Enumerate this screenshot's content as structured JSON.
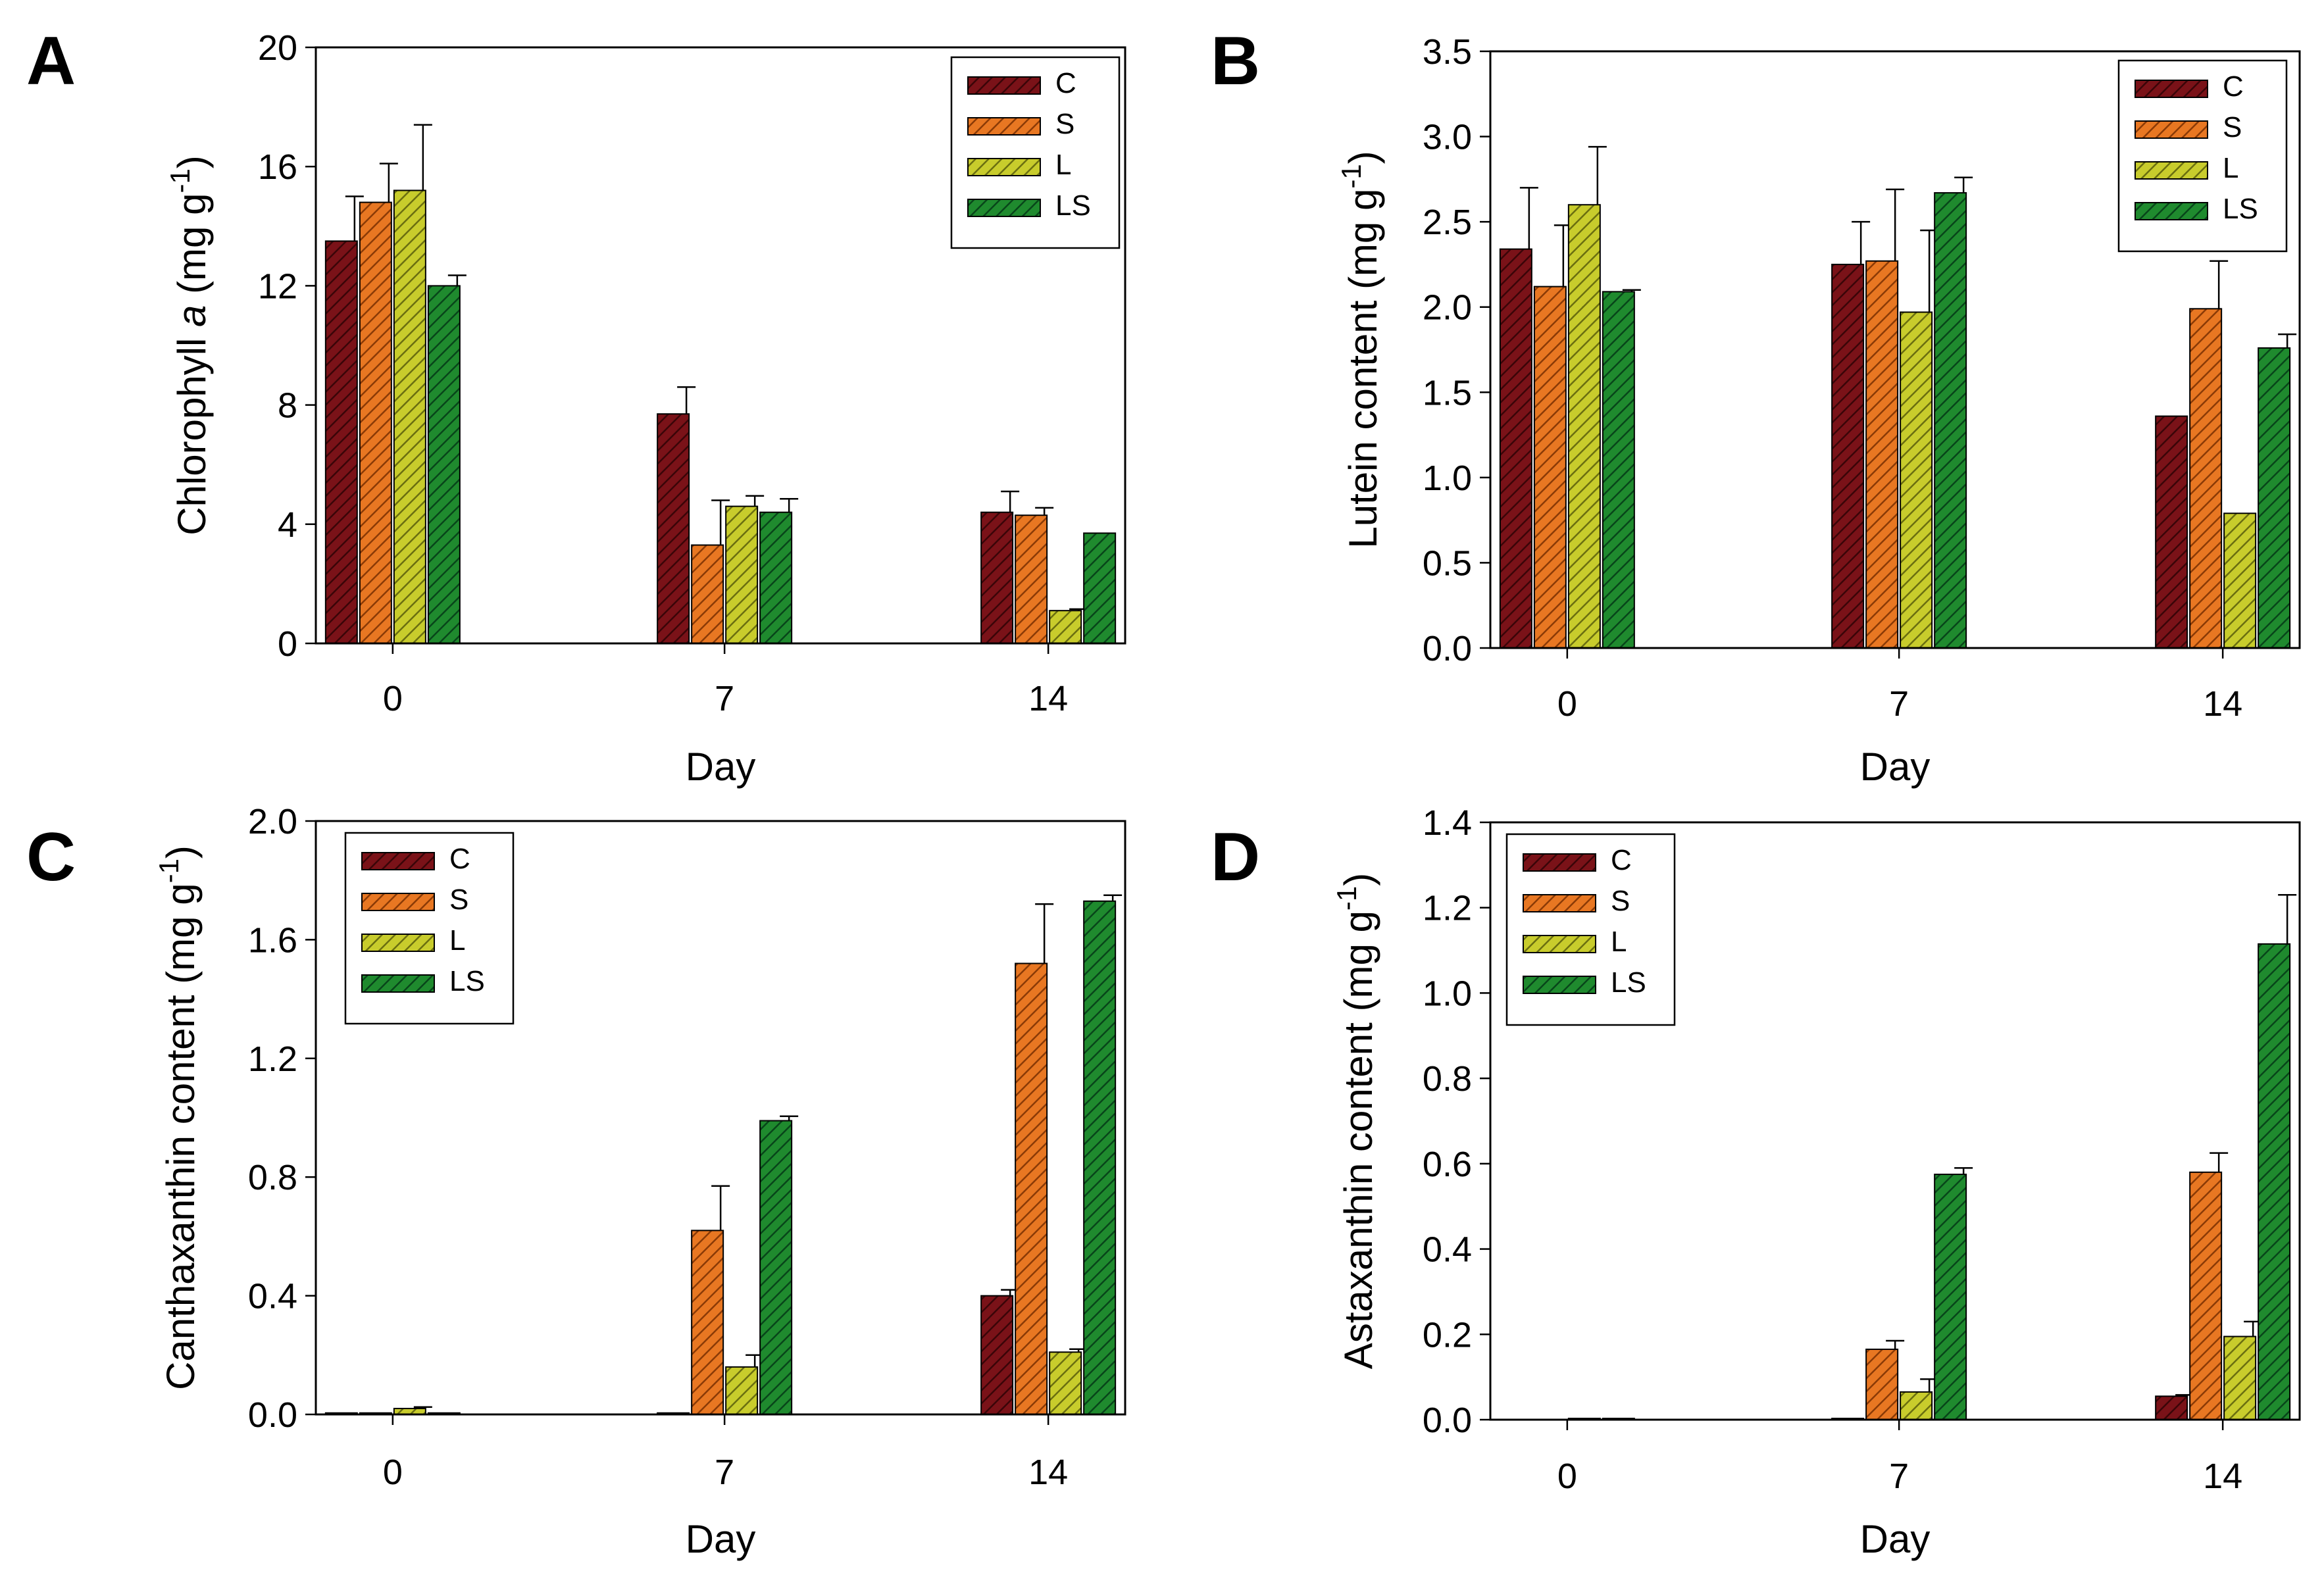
{
  "figure": {
    "colors": {
      "C": "#7a1218",
      "S": "#e87722",
      "L": "#c8cc2c",
      "LS": "#1f8a2e",
      "C_hatch": "#3a0508",
      "S_hatch": "#8a3a06",
      "L_hatch": "#6a6e10",
      "LS_hatch": "#08451a"
    }
  },
  "chart_data": [
    {
      "panel": "A",
      "type": "bar",
      "xlabel": "Day",
      "ylabel_main": "Chlorophyll ",
      "ylabel_italic": "a",
      "ylabel_unit": " (mg g",
      "ylabel_sup": "-1",
      "ylabel_close": ")",
      "categories": [
        "0",
        "7",
        "14"
      ],
      "ylim": [
        0,
        20
      ],
      "yticks": [
        "0",
        "4",
        "8",
        "12",
        "16",
        "20"
      ],
      "legend_position": "top-right",
      "series": [
        {
          "name": "C",
          "values": [
            13.5,
            7.7,
            4.4
          ],
          "errors": [
            1.5,
            0.9,
            0.7
          ]
        },
        {
          "name": "S",
          "values": [
            14.8,
            3.3,
            4.3
          ],
          "errors": [
            1.3,
            1.5,
            0.25
          ]
        },
        {
          "name": "L",
          "values": [
            15.2,
            4.6,
            1.1
          ],
          "errors": [
            2.2,
            0.35,
            0.05
          ]
        },
        {
          "name": "LS",
          "values": [
            12.0,
            4.4,
            3.7
          ],
          "errors": [
            0.35,
            0.45,
            0.0
          ]
        }
      ]
    },
    {
      "panel": "B",
      "type": "bar",
      "xlabel": "Day",
      "ylabel_main": "Lutein content",
      "ylabel_italic": "",
      "ylabel_unit": " (mg g",
      "ylabel_sup": "-1",
      "ylabel_close": ")",
      "categories": [
        "0",
        "7",
        "14"
      ],
      "ylim": [
        0,
        3.5
      ],
      "yticks": [
        "0.0",
        "0.5",
        "1.0",
        "1.5",
        "2.0",
        "2.5",
        "3.0",
        "3.5"
      ],
      "legend_position": "top-right",
      "series": [
        {
          "name": "C",
          "values": [
            2.34,
            2.25,
            1.36
          ],
          "errors": [
            0.36,
            0.25,
            0.0
          ]
        },
        {
          "name": "S",
          "values": [
            2.12,
            2.27,
            1.99
          ],
          "errors": [
            0.36,
            0.42,
            0.28
          ]
        },
        {
          "name": "L",
          "values": [
            2.6,
            1.97,
            0.79
          ],
          "errors": [
            0.34,
            0.48,
            0.0
          ]
        },
        {
          "name": "LS",
          "values": [
            2.09,
            2.67,
            1.76
          ],
          "errors": [
            0.01,
            0.09,
            0.08
          ]
        }
      ]
    },
    {
      "panel": "C",
      "type": "bar",
      "xlabel": "Day",
      "ylabel_main": "Canthaxanthin content",
      "ylabel_italic": "",
      "ylabel_unit": " (mg g",
      "ylabel_sup": "-1",
      "ylabel_close": ")",
      "categories": [
        "0",
        "7",
        "14"
      ],
      "ylim": [
        0,
        2.0
      ],
      "yticks": [
        "0.0",
        "0.4",
        "0.8",
        "1.2",
        "1.6",
        "2.0"
      ],
      "legend_position": "top-left",
      "series": [
        {
          "name": "C",
          "values": [
            0.005,
            0.005,
            0.4
          ],
          "errors": [
            0.0,
            0.0,
            0.02
          ]
        },
        {
          "name": "S",
          "values": [
            0.005,
            0.62,
            1.52
          ],
          "errors": [
            0.0,
            0.15,
            0.2
          ]
        },
        {
          "name": "L",
          "values": [
            0.02,
            0.16,
            0.21
          ],
          "errors": [
            0.005,
            0.04,
            0.01
          ]
        },
        {
          "name": "LS",
          "values": [
            0.005,
            0.99,
            1.73
          ],
          "errors": [
            0.0,
            0.015,
            0.02
          ]
        }
      ]
    },
    {
      "panel": "D",
      "type": "bar",
      "xlabel": "Day",
      "ylabel_main": "Astaxanthin content",
      "ylabel_italic": "",
      "ylabel_unit": " (mg g",
      "ylabel_sup": "-1",
      "ylabel_close": ")",
      "categories": [
        "0",
        "7",
        "14"
      ],
      "ylim": [
        0,
        1.4
      ],
      "yticks": [
        "0.0",
        "0.2",
        "0.4",
        "0.6",
        "0.8",
        "1.0",
        "1.2",
        "1.4"
      ],
      "legend_position": "top-left",
      "series": [
        {
          "name": "C",
          "values": [
            0.0,
            0.003,
            0.055
          ],
          "errors": [
            0.0,
            0.0,
            0.003
          ]
        },
        {
          "name": "S",
          "values": [
            0.0,
            0.165,
            0.58
          ],
          "errors": [
            0.0,
            0.02,
            0.045
          ]
        },
        {
          "name": "L",
          "values": [
            0.003,
            0.065,
            0.195
          ],
          "errors": [
            0.0,
            0.03,
            0.035
          ]
        },
        {
          "name": "LS",
          "values": [
            0.003,
            0.575,
            1.115
          ],
          "errors": [
            0.0,
            0.015,
            0.115
          ]
        }
      ]
    }
  ]
}
